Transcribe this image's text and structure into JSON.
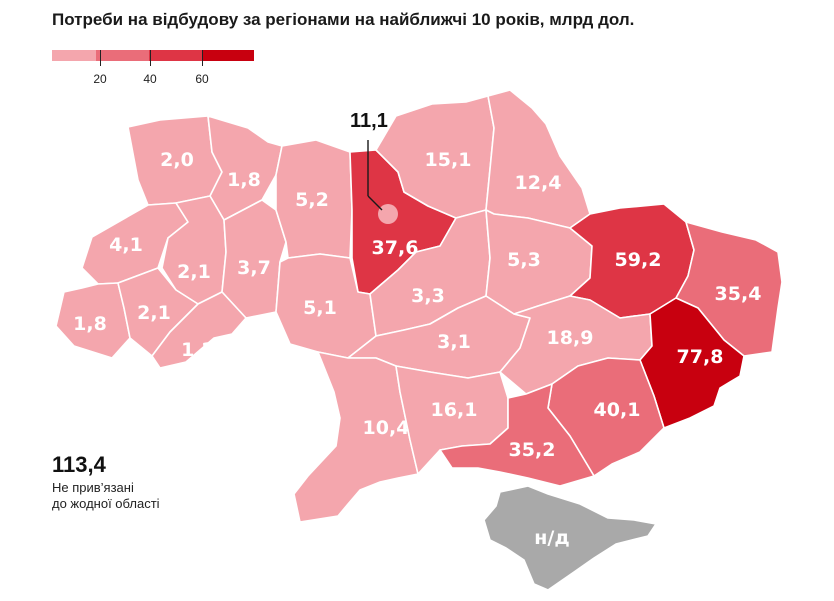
{
  "title": "Потреби на відбудову за регіонами на найближчі 10 років, млрд дол.",
  "colors": {
    "level1": "#f4a6ad",
    "level2": "#ea6d79",
    "level3": "#de3545",
    "level4": "#c8000f",
    "unknown": "#a9a9a9"
  },
  "legend": {
    "ticks": [
      "20",
      "40",
      "60"
    ]
  },
  "regions": [
    {
      "id": "volyn",
      "value": "2,0",
      "level": "level1"
    },
    {
      "id": "rivne",
      "value": "1,8",
      "level": "level1"
    },
    {
      "id": "zhytomyr",
      "value": "5,2",
      "level": "level1"
    },
    {
      "id": "kyiv-oblast",
      "value": "37,6",
      "level": "level3"
    },
    {
      "id": "chernihiv",
      "value": "15,1",
      "level": "level1"
    },
    {
      "id": "sumy",
      "value": "12,4",
      "level": "level1"
    },
    {
      "id": "kharkiv",
      "value": "59,2",
      "level": "level3"
    },
    {
      "id": "luhansk",
      "value": "35,4",
      "level": "level2"
    },
    {
      "id": "lviv",
      "value": "4,1",
      "level": "level1"
    },
    {
      "id": "ternopil",
      "value": "2,1",
      "level": "level1"
    },
    {
      "id": "khmelnytskyi",
      "value": "3,7",
      "level": "level1"
    },
    {
      "id": "vinnytsia",
      "value": "5,1",
      "level": "level1"
    },
    {
      "id": "cherkasy",
      "value": "3,3",
      "level": "level1"
    },
    {
      "id": "poltava",
      "value": "5,3",
      "level": "level1"
    },
    {
      "id": "zakarpattia",
      "value": "1,8",
      "level": "level1"
    },
    {
      "id": "ivano-frankivsk",
      "value": "2,1",
      "level": "level1"
    },
    {
      "id": "chernivtsi",
      "value": "1,2",
      "level": "level1"
    },
    {
      "id": "kirovohrad",
      "value": "3,1",
      "level": "level1"
    },
    {
      "id": "dnipropetrovsk",
      "value": "18,9",
      "level": "level1"
    },
    {
      "id": "donetsk",
      "value": "77,8",
      "level": "level4"
    },
    {
      "id": "odesa",
      "value": "10,4",
      "level": "level1"
    },
    {
      "id": "mykolaiv",
      "value": "16,1",
      "level": "level1"
    },
    {
      "id": "zaporizhzhia",
      "value": "40,1",
      "level": "level2"
    },
    {
      "id": "kherson",
      "value": "35,2",
      "level": "level2"
    },
    {
      "id": "crimea",
      "value": "н/д",
      "level": "unknown"
    }
  ],
  "kyiv_city": {
    "value": "11,1"
  },
  "unassigned": {
    "value": "113,4",
    "line1": "Не прив’язані",
    "line2": "до жодної області"
  }
}
